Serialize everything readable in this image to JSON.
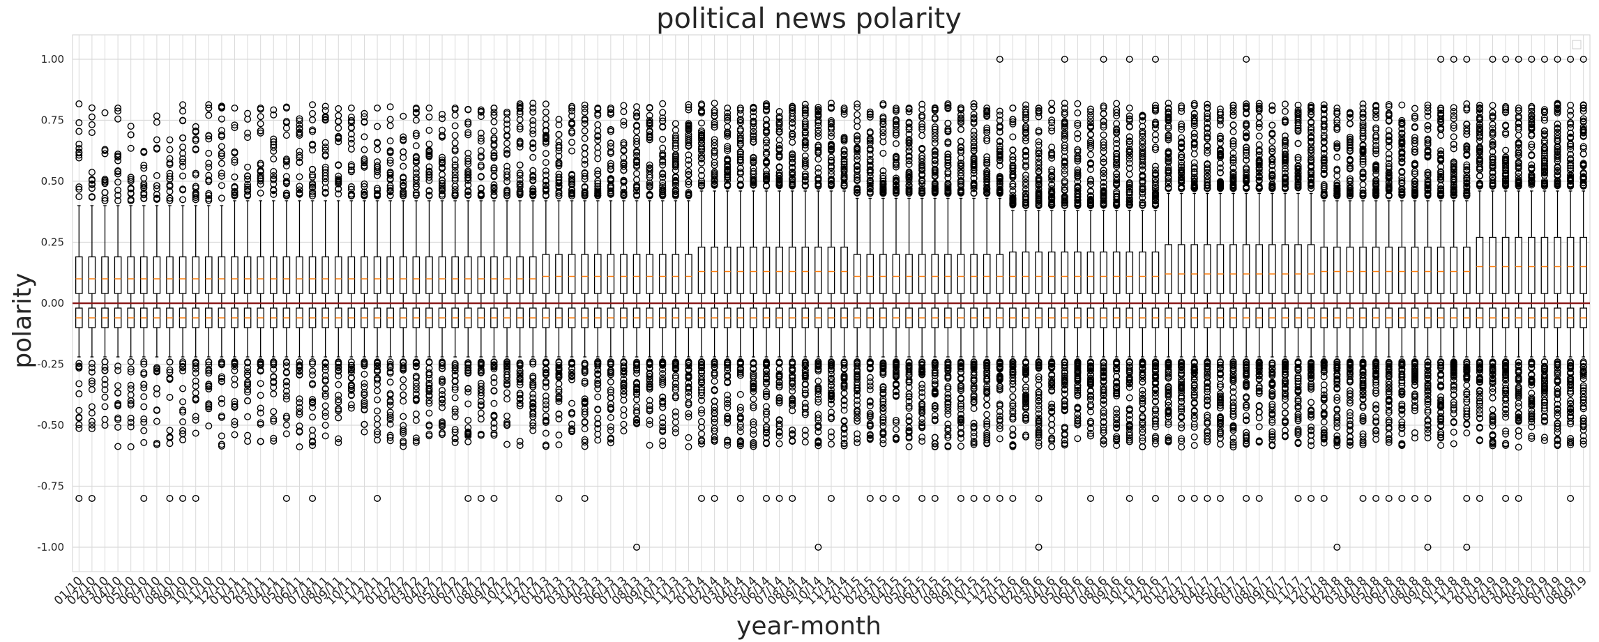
{
  "chart_data": {
    "type": "box",
    "title": "political news polarity",
    "xlabel": "year-month",
    "ylabel": "polarity",
    "ylim": [
      -1.1,
      1.1
    ],
    "yticks": [
      "1.00",
      "0.75",
      "0.50",
      "0.25",
      "0.00",
      "-0.25",
      "-0.50",
      "-0.75",
      "-1.00"
    ],
    "ytick_values": [
      1.0,
      0.75,
      0.5,
      0.25,
      0.0,
      -0.25,
      -0.5,
      -0.75,
      -1.0
    ],
    "grid": true,
    "legend": "top-right (empty)",
    "reference_line": {
      "y": 0.0,
      "color": "#8b1a1a"
    },
    "colors": {
      "median": "#ff7f0e",
      "box": "#000000",
      "grid": "#d9d9d9"
    },
    "categories": [
      "01/10",
      "02/10",
      "03/10",
      "04/10",
      "05/10",
      "06/10",
      "07/10",
      "08/10",
      "09/10",
      "10/10",
      "11/10",
      "12/10",
      "01/11",
      "02/11",
      "03/11",
      "04/11",
      "05/11",
      "06/11",
      "07/11",
      "08/11",
      "09/11",
      "10/11",
      "11/11",
      "12/11",
      "01/12",
      "02/12",
      "03/12",
      "04/12",
      "05/12",
      "06/12",
      "07/12",
      "08/12",
      "09/12",
      "10/12",
      "11/12",
      "12/12",
      "01/13",
      "02/13",
      "03/13",
      "04/13",
      "05/13",
      "06/13",
      "07/13",
      "08/13",
      "09/13",
      "10/13",
      "11/13",
      "12/13",
      "01/14",
      "02/14",
      "03/14",
      "04/14",
      "05/14",
      "06/14",
      "07/14",
      "08/14",
      "09/14",
      "10/14",
      "11/14",
      "12/14",
      "01/15",
      "02/15",
      "03/15",
      "04/15",
      "05/15",
      "06/15",
      "07/15",
      "08/15",
      "09/15",
      "10/15",
      "11/15",
      "12/15",
      "01/16",
      "02/16",
      "03/16",
      "04/16",
      "05/16",
      "06/16",
      "07/16",
      "08/16",
      "09/16",
      "10/16",
      "11/16",
      "12/16",
      "01/17",
      "02/17",
      "03/17",
      "04/17",
      "05/17",
      "06/17",
      "07/17",
      "08/17",
      "09/17",
      "10/17",
      "11/17",
      "12/17",
      "01/18",
      "02/18",
      "03/18",
      "04/18",
      "05/18",
      "06/18",
      "07/18",
      "08/18",
      "09/18",
      "10/18",
      "11/18",
      "12/18",
      "01/19",
      "02/19",
      "03/19",
      "04/19",
      "05/19",
      "06/19",
      "07/19",
      "08/19",
      "09/19"
    ],
    "positive_series": {
      "q1": 0.04,
      "median_by_year": {
        "2010": 0.1,
        "2011": 0.1,
        "2012": 0.1,
        "2013": 0.11,
        "2014": 0.13,
        "2015": 0.11,
        "2016": 0.11,
        "2017": 0.12,
        "2018": 0.13,
        "2019": 0.15
      },
      "q3_by_year": {
        "2010": 0.19,
        "2011": 0.19,
        "2012": 0.19,
        "2013": 0.2,
        "2014": 0.23,
        "2015": 0.2,
        "2016": 0.21,
        "2017": 0.24,
        "2018": 0.23,
        "2019": 0.27
      },
      "upper_whisker_by_year": {
        "2010": 0.4,
        "2011": 0.42,
        "2012": 0.42,
        "2013": 0.42,
        "2014": 0.46,
        "2015": 0.43,
        "2016": 0.38,
        "2017": 0.45,
        "2018": 0.42,
        "2019": 0.46
      }
    },
    "negative_series": {
      "q3": -0.02,
      "median": -0.06,
      "q1": -0.1,
      "lower_whisker": -0.22
    },
    "extreme_outliers": {
      "max_positive": 1.0,
      "min_negative": -1.0,
      "positive_1_00": [
        "12/15",
        "05/16",
        "08/16",
        "10/16",
        "12/16",
        "07/17",
        "05/19",
        "07/19",
        "03/19",
        "09/19",
        "10/18",
        "11/18",
        "12/18",
        "02/19",
        "04/19",
        "06/19",
        "08/19"
      ],
      "negative_1_00": [
        "08/13",
        "10/14",
        "03/16",
        "02/18",
        "09/18",
        "12/18"
      ]
    }
  }
}
